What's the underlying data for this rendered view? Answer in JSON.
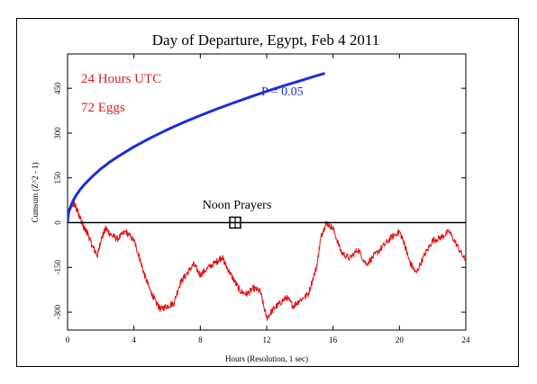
{
  "chart_data": {
    "type": "line",
    "title": "Day of Departure, Egypt, Feb 4 2011",
    "xlabel": "Hours (Resolution, 1 sec)",
    "ylabel": "Cumsum (Z^2 - 1)",
    "xlim": [
      0,
      24
    ],
    "ylim": [
      -360,
      565
    ],
    "x_ticks": [
      0,
      4,
      8,
      12,
      16,
      20,
      24
    ],
    "y_ticks": [
      -300,
      -150,
      0,
      150,
      300,
      450
    ],
    "grid": false,
    "annotations": {
      "duration": "24 Hours UTC",
      "eggs": "72 Eggs",
      "p_label": "P = 0.05",
      "event_label": "Noon Prayers",
      "event_hour": 10.1,
      "event_value": 0
    },
    "colors": {
      "cumsum": "#e01010",
      "envelope": "#1a2ed8",
      "baseline": "#000000",
      "annotation_red": "#d42020",
      "annotation_blue": "#1a2ed8"
    },
    "series": [
      {
        "name": "",
        "color": "#e01010",
        "x": [
          0,
          0.2,
          0.4,
          0.6,
          0.8,
          1.0,
          1.2,
          1.5,
          1.8,
          2.0,
          2.3,
          2.6,
          3.0,
          3.5,
          4.0,
          4.3,
          4.6,
          5.0,
          5.3,
          5.6,
          6.0,
          6.4,
          6.8,
          7.2,
          7.6,
          8.0,
          8.5,
          9.0,
          9.3,
          9.6,
          10.0,
          10.4,
          10.8,
          11.2,
          11.6,
          12.0,
          12.4,
          12.8,
          13.2,
          13.6,
          14.0,
          14.5,
          15.0,
          15.3,
          15.6,
          16.0,
          16.5,
          17.0,
          17.5,
          18.0,
          18.5,
          19.0,
          19.5,
          20.0,
          20.3,
          20.6,
          21.0,
          21.5,
          22.0,
          22.5,
          23.0,
          23.5,
          24.0
        ],
        "values": [
          30,
          55,
          62,
          40,
          10,
          -20,
          -35,
          -80,
          -110,
          -60,
          -20,
          -40,
          -55,
          -30,
          -60,
          -110,
          -170,
          -230,
          -265,
          -290,
          -280,
          -270,
          -200,
          -170,
          -140,
          -175,
          -150,
          -130,
          -115,
          -150,
          -190,
          -230,
          -240,
          -220,
          -230,
          -320,
          -290,
          -270,
          -250,
          -280,
          -260,
          -240,
          -150,
          -40,
          0,
          -20,
          -100,
          -120,
          -90,
          -140,
          -110,
          -80,
          -50,
          -30,
          -70,
          -130,
          -170,
          -110,
          -60,
          -50,
          -30,
          -80,
          -130
        ]
      },
      {
        "name": "P = 0.05",
        "color": "#1a2ed8",
        "x": [
          0,
          0.02,
          0.05,
          0.1,
          0.2,
          0.35,
          0.5,
          0.75,
          1.0,
          1.5,
          2.0,
          2.5,
          3.0,
          4.0,
          5.0,
          6.0,
          7.0,
          8.0,
          9.0,
          10.0,
          11.0,
          12.0,
          13.0,
          14.0,
          15.0,
          15.5
        ],
        "values": [
          0,
          18,
          28,
          40,
          56,
          75,
          90,
          110,
          127,
          155,
          180,
          201,
          220,
          254,
          284,
          311,
          336,
          359,
          381,
          401,
          421,
          440,
          458,
          475,
          492,
          500
        ]
      }
    ]
  }
}
